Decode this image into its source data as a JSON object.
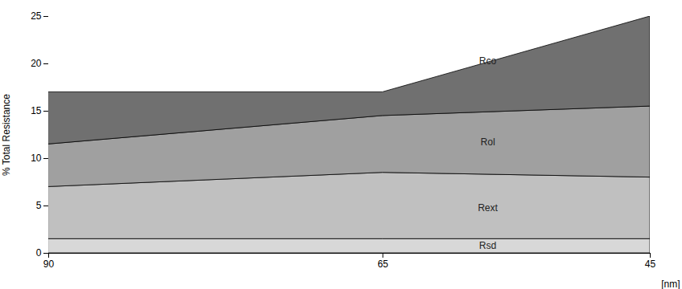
{
  "chart_data": {
    "type": "area",
    "stacked": true,
    "x": [
      90,
      65,
      45
    ],
    "series": [
      {
        "name": "Rsd",
        "color": "#d8d8d8",
        "values": [
          1.5,
          1.5,
          1.5
        ]
      },
      {
        "name": "Rext",
        "color": "#c0c0c0",
        "values": [
          5.5,
          7.0,
          6.5
        ]
      },
      {
        "name": "Rol",
        "color": "#a0a0a0",
        "values": [
          4.5,
          6.0,
          7.5
        ]
      },
      {
        "name": "Rco",
        "color": "#707070",
        "values": [
          5.5,
          2.5,
          9.5
        ]
      }
    ],
    "xlabel": "[nm]",
    "ylabel": "% Total Resistance",
    "xlim": [
      90,
      45
    ],
    "xticks": [
      90,
      65,
      45
    ],
    "ylim": [
      0,
      25
    ],
    "yticks": [
      0,
      5,
      10,
      15,
      20,
      25
    ]
  }
}
